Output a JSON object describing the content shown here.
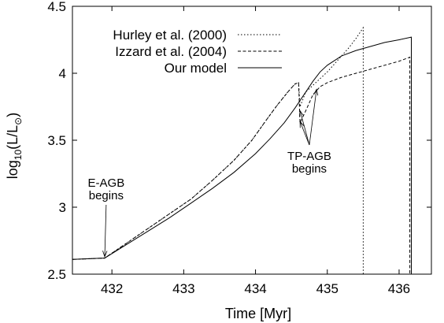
{
  "chart_data": {
    "type": "line",
    "xlabel": "Time [Myr]",
    "ylabel_main": "log",
    "ylabel_sub10": "10",
    "ylabel_rest": "(L/L",
    "ylabel_sun": "⊙",
    "ylabel_close": ")",
    "xlim": [
      431.45,
      436.45
    ],
    "ylim": [
      2.5,
      4.5
    ],
    "xticks": [
      432,
      433,
      434,
      435,
      436
    ],
    "yticks": [
      2.5,
      3,
      3.5,
      4,
      4.5
    ],
    "xtick_labels": [
      "432",
      "433",
      "434",
      "435",
      "436"
    ],
    "ytick_labels": [
      "2.5",
      "3",
      "3.5",
      "4",
      "4.5"
    ],
    "grid": false,
    "legend_position": "top-right",
    "series": [
      {
        "name": "Hurley et al. (2000)",
        "style": "dotted",
        "x": [
          431.45,
          431.9,
          432.2,
          432.5,
          432.8,
          433.1,
          433.4,
          433.7,
          433.95,
          434.15,
          434.3,
          434.45,
          434.55,
          434.6,
          434.62,
          434.7,
          434.8,
          434.9,
          435.0,
          435.1,
          435.2,
          435.3,
          435.4,
          435.5,
          435.5
        ],
        "y": [
          2.61,
          2.62,
          2.73,
          2.84,
          2.95,
          3.06,
          3.2,
          3.35,
          3.5,
          3.65,
          3.76,
          3.86,
          3.92,
          3.93,
          3.75,
          3.86,
          3.91,
          3.96,
          4.01,
          4.07,
          4.13,
          4.19,
          4.26,
          4.34,
          2.5
        ]
      },
      {
        "name": "Izzard et al. (2004)",
        "style": "dashed",
        "x": [
          431.45,
          431.9,
          432.2,
          432.5,
          432.8,
          433.1,
          433.4,
          433.7,
          433.95,
          434.15,
          434.3,
          434.45,
          434.55,
          434.6,
          434.62,
          434.7,
          434.8,
          434.9,
          435.0,
          435.2,
          435.4,
          435.6,
          435.8,
          436.0,
          436.15,
          436.15
        ],
        "y": [
          2.61,
          2.62,
          2.73,
          2.84,
          2.95,
          3.06,
          3.2,
          3.35,
          3.5,
          3.65,
          3.76,
          3.86,
          3.92,
          3.93,
          3.63,
          3.72,
          3.84,
          3.9,
          3.93,
          3.97,
          4.0,
          4.03,
          4.06,
          4.09,
          4.12,
          2.5
        ]
      },
      {
        "name": "Our model",
        "style": "solid",
        "x": [
          431.45,
          431.9,
          432.2,
          432.5,
          432.8,
          433.1,
          433.4,
          433.7,
          434.0,
          434.2,
          434.4,
          434.55,
          434.7,
          434.8,
          434.9,
          435.0,
          435.2,
          435.4,
          435.6,
          435.8,
          436.0,
          436.17,
          436.17
        ],
        "y": [
          2.61,
          2.62,
          2.72,
          2.82,
          2.92,
          3.03,
          3.14,
          3.26,
          3.4,
          3.51,
          3.63,
          3.74,
          3.86,
          3.94,
          4.01,
          4.06,
          4.13,
          4.17,
          4.2,
          4.23,
          4.25,
          4.27,
          2.5
        ]
      }
    ],
    "annotations": [
      {
        "line1": "E-AGB",
        "line2": "begins",
        "text_x": 431.92,
        "text_y": 3.1,
        "arrows": [
          {
            "x": 431.9,
            "y": 2.63
          }
        ]
      },
      {
        "line1": "TP-AGB",
        "line2": "begins",
        "text_x": 434.75,
        "text_y": 3.3,
        "arrows": [
          {
            "x": 434.62,
            "y": 3.72
          },
          {
            "x": 434.62,
            "y": 3.64
          },
          {
            "x": 434.85,
            "y": 3.88
          }
        ]
      }
    ]
  }
}
